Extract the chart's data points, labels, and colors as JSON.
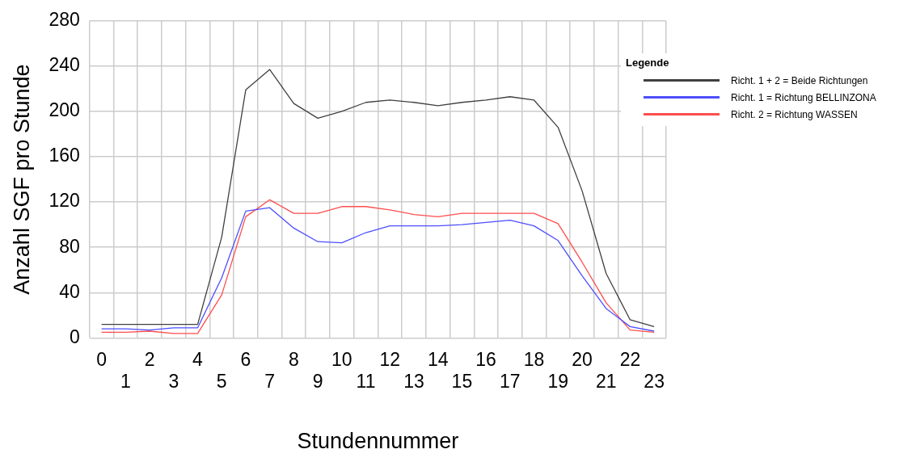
{
  "chart_data": {
    "type": "line",
    "xlabel": "Stundennummer",
    "ylabel": "Anzahl SGF pro Stunde",
    "legend_title": "Legende",
    "categories": [
      "0",
      "1",
      "2",
      "3",
      "4",
      "5",
      "6",
      "7",
      "8",
      "9",
      "10",
      "11",
      "12",
      "13",
      "14",
      "15",
      "16",
      "17",
      "18",
      "19",
      "20",
      "21",
      "22",
      "23"
    ],
    "series": [
      {
        "name": "Richt. 1 + 2 = Beide Richtungen",
        "color": "#404040",
        "values": [
          12,
          12,
          12,
          12,
          12,
          89,
          219,
          237,
          207,
          194,
          200,
          208,
          210,
          208,
          205,
          208,
          210,
          213,
          210,
          186,
          130,
          57,
          16,
          10
        ]
      },
      {
        "name": "Richt. 1 = Richtung BELLINZONA",
        "color": "#4d4dff",
        "values": [
          8,
          8,
          7,
          9,
          9,
          53,
          112,
          115,
          97,
          85,
          84,
          93,
          99,
          99,
          99,
          100,
          102,
          104,
          99,
          86,
          55,
          26,
          10,
          6
        ]
      },
      {
        "name": "Richt. 2 = Richtung WASSEN",
        "color": "#ff4d4d",
        "values": [
          5,
          5,
          6,
          4,
          4,
          38,
          107,
          122,
          110,
          110,
          116,
          116,
          113,
          109,
          107,
          110,
          110,
          110,
          110,
          101,
          67,
          31,
          7,
          5
        ]
      }
    ],
    "ylim": [
      0,
      280
    ],
    "yticks": [
      0,
      40,
      80,
      120,
      160,
      200,
      240,
      280
    ],
    "grid": true,
    "legend": "right",
    "marker": "none",
    "line_style": "solid"
  }
}
